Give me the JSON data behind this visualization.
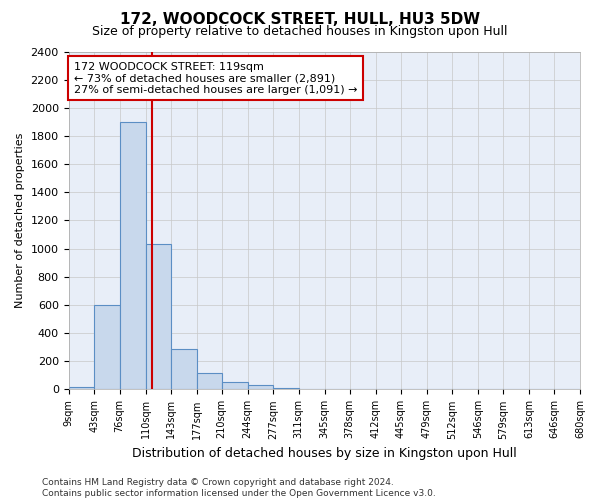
{
  "title": "172, WOODCOCK STREET, HULL, HU3 5DW",
  "subtitle": "Size of property relative to detached houses in Kingston upon Hull",
  "xlabel": "Distribution of detached houses by size in Kingston upon Hull",
  "ylabel": "Number of detached properties",
  "footer_line1": "Contains HM Land Registry data © Crown copyright and database right 2024.",
  "footer_line2": "Contains public sector information licensed under the Open Government Licence v3.0.",
  "bar_edges": [
    9,
    43,
    76,
    110,
    143,
    177,
    210,
    244,
    277,
    311,
    345,
    378,
    412,
    445,
    479,
    512,
    546,
    579,
    613,
    646,
    680
  ],
  "bar_heights": [
    20,
    600,
    1900,
    1030,
    290,
    115,
    55,
    30,
    10,
    5,
    3,
    2,
    1,
    1,
    0,
    0,
    0,
    0,
    0,
    0
  ],
  "bar_color": "#c8d8ec",
  "bar_edge_color": "#5b8ec4",
  "property_size": 119,
  "vline_color": "#cc0000",
  "annotation_line1": "172 WOODCOCK STREET: 119sqm",
  "annotation_line2": "← 73% of detached houses are smaller (2,891)",
  "annotation_line3": "27% of semi-detached houses are larger (1,091) →",
  "annotation_box_color": "#cc0000",
  "ylim": [
    0,
    2400
  ],
  "yticks": [
    0,
    200,
    400,
    600,
    800,
    1000,
    1200,
    1400,
    1600,
    1800,
    2000,
    2200,
    2400
  ],
  "grid_color": "#c8c8c8",
  "bg_color": "#e8eef8",
  "title_fontsize": 11,
  "subtitle_fontsize": 9,
  "tick_label_fontsize": 7,
  "ylabel_fontsize": 8,
  "xlabel_fontsize": 9,
  "footer_fontsize": 6.5,
  "annotation_fontsize": 8
}
